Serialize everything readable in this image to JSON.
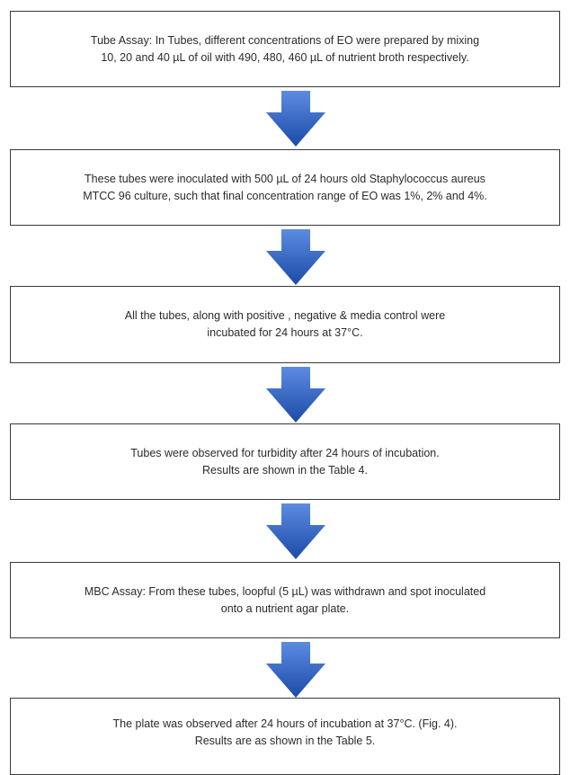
{
  "flowchart": {
    "steps": [
      {
        "lines": [
          "Tube Assay: In Tubes, different concentrations of EO were prepared by mixing",
          "10, 20 and 40 µL of oil with 490, 480, 460 µL of nutrient broth respectively."
        ]
      },
      {
        "lines": [
          "These tubes were inoculated with 500 µL of 24 hours old Staphylococcus aureus",
          "MTCC 96 culture, such that final concentration range of EO was 1%, 2% and 4%."
        ]
      },
      {
        "lines": [
          "All the tubes, along with positive , negative & media control were",
          "incubated for 24 hours at 37°C."
        ]
      },
      {
        "lines": [
          "Tubes were observed for turbidity after 24 hours of incubation.",
          "Results are shown in the Table 4."
        ]
      },
      {
        "lines": [
          "MBC Assay: From these tubes, loopful (5 µL) was withdrawn and spot inoculated",
          "onto a nutrient agar plate."
        ]
      },
      {
        "lines": [
          "The plate was observed after 24 hours of incubation at 37°C. (Fig. 4).",
          "Results are as shown in the Table 5."
        ]
      }
    ],
    "colors": {
      "arrow_top": "#5b8ce0",
      "arrow_bottom": "#1c4aa8",
      "border": "#3a3a3a",
      "text": "#2b2b2b"
    }
  }
}
